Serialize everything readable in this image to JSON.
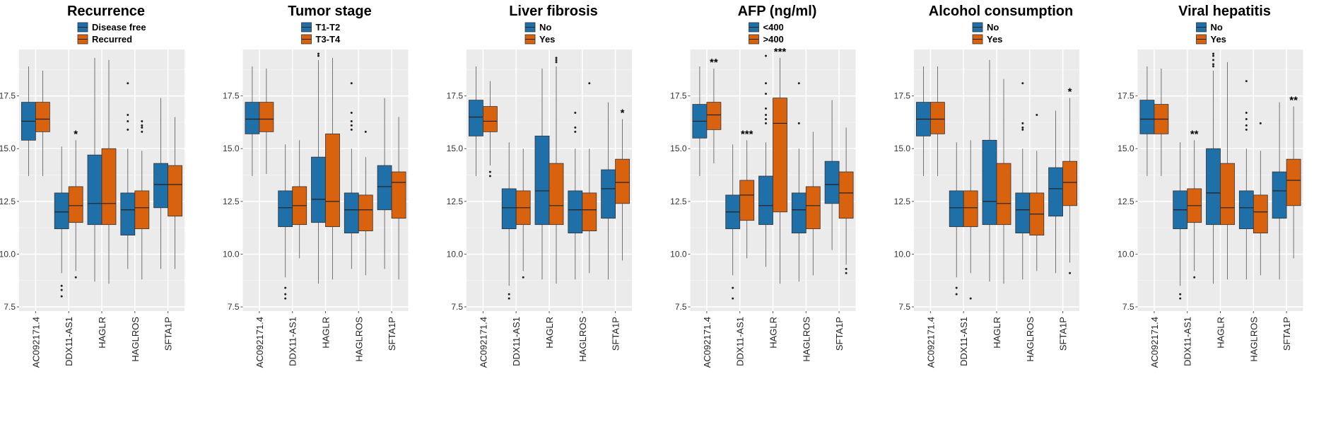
{
  "chart_data": [
    {
      "type": "box",
      "title": "Recurrence",
      "legend": [
        "Disease free",
        "Recurred"
      ],
      "categories": [
        "AC092171.4",
        "DDX11-AS1",
        "HAGLR",
        "HAGLROS",
        "SFTA1P"
      ],
      "ylim": [
        7.3,
        19.7
      ],
      "yticks": [
        "7.5",
        "10.0",
        "12.5",
        "15.0",
        "17.5"
      ],
      "colors": [
        "#1f6fa8",
        "#d9620f"
      ],
      "boxes": [
        [
          {
            "q1": 15.4,
            "med": 16.3,
            "q3": 17.2,
            "lo": 13.7,
            "hi": 18.9,
            "out": []
          },
          {
            "q1": 15.8,
            "med": 16.4,
            "q3": 17.2,
            "lo": 13.7,
            "hi": 18.7,
            "out": []
          }
        ],
        [
          {
            "q1": 11.2,
            "med": 12.0,
            "q3": 12.9,
            "lo": 9.1,
            "hi": 15.1,
            "out": [
              8.5,
              8.3,
              8.0
            ]
          },
          {
            "q1": 11.5,
            "med": 12.3,
            "q3": 13.2,
            "lo": 9.2,
            "hi": 15.4,
            "out": [
              8.9
            ]
          }
        ],
        [
          {
            "q1": 11.4,
            "med": 12.4,
            "q3": 14.7,
            "lo": 8.7,
            "hi": 19.3,
            "out": []
          },
          {
            "q1": 11.4,
            "med": 12.4,
            "q3": 15.0,
            "lo": 8.6,
            "hi": 19.2,
            "out": []
          }
        ],
        [
          {
            "q1": 10.9,
            "med": 12.1,
            "q3": 12.9,
            "lo": 9.3,
            "hi": 15.0,
            "out": [
              15.9,
              16.3,
              16.6,
              18.1
            ]
          },
          {
            "q1": 11.2,
            "med": 12.2,
            "q3": 13.0,
            "lo": 8.8,
            "hi": 14.9,
            "out": [
              15.8,
              16.0,
              16.1,
              16.3
            ]
          }
        ],
        [
          {
            "q1": 12.2,
            "med": 13.3,
            "q3": 14.3,
            "lo": 9.3,
            "hi": 17.4,
            "out": []
          },
          {
            "q1": 11.8,
            "med": 13.3,
            "q3": 14.2,
            "lo": 9.3,
            "hi": 16.5,
            "out": []
          }
        ]
      ],
      "sig": [
        "",
        "*",
        "",
        "",
        ""
      ]
    },
    {
      "type": "box",
      "title": "Tumor stage",
      "legend": [
        "T1-T2",
        "T3-T4"
      ],
      "categories": [
        "AC092171.4",
        "DDX11-AS1",
        "HAGLR",
        "HAGLROS",
        "SFTA1P"
      ],
      "ylim": [
        7.3,
        19.7
      ],
      "yticks": [
        "7.5",
        "10.0",
        "12.5",
        "15.0",
        "17.5"
      ],
      "colors": [
        "#1f6fa8",
        "#d9620f"
      ],
      "boxes": [
        [
          {
            "q1": 15.7,
            "med": 16.4,
            "q3": 17.2,
            "lo": 13.7,
            "hi": 18.9,
            "out": []
          },
          {
            "q1": 15.8,
            "med": 16.4,
            "q3": 17.2,
            "lo": 13.8,
            "hi": 18.8,
            "out": []
          }
        ],
        [
          {
            "q1": 11.3,
            "med": 12.2,
            "q3": 13.0,
            "lo": 8.9,
            "hi": 15.2,
            "out": [
              8.4,
              8.1,
              7.9
            ]
          },
          {
            "q1": 11.4,
            "med": 12.3,
            "q3": 13.2,
            "lo": 9.8,
            "hi": 15.4,
            "out": []
          }
        ],
        [
          {
            "q1": 11.5,
            "med": 12.6,
            "q3": 14.6,
            "lo": 8.6,
            "hi": 19.2,
            "out": [
              19.4,
              19.5
            ]
          },
          {
            "q1": 11.3,
            "med": 12.5,
            "q3": 15.7,
            "lo": 8.8,
            "hi": 19.3,
            "out": []
          }
        ],
        [
          {
            "q1": 11.0,
            "med": 12.1,
            "q3": 12.9,
            "lo": 9.3,
            "hi": 15.0,
            "out": [
              15.9,
              16.1,
              16.3,
              16.7,
              18.1
            ]
          },
          {
            "q1": 11.1,
            "med": 12.1,
            "q3": 12.8,
            "lo": 9.0,
            "hi": 14.6,
            "out": [
              15.8
            ]
          }
        ],
        [
          {
            "q1": 12.1,
            "med": 13.2,
            "q3": 14.2,
            "lo": 9.3,
            "hi": 17.4,
            "out": []
          },
          {
            "q1": 11.7,
            "med": 13.4,
            "q3": 13.9,
            "lo": 8.8,
            "hi": 16.5,
            "out": []
          }
        ]
      ],
      "sig": [
        "",
        "",
        "",
        "",
        ""
      ]
    },
    {
      "type": "box",
      "title": "Liver fibrosis",
      "legend": [
        "No",
        "Yes"
      ],
      "categories": [
        "AC092171.4",
        "DDX11-AS1",
        "HAGLR",
        "HAGLROS",
        "SFTA1P"
      ],
      "ylim": [
        7.3,
        19.7
      ],
      "yticks": [
        "7.5",
        "10.0",
        "12.5",
        "15.0",
        "17.5"
      ],
      "colors": [
        "#1f6fa8",
        "#d9620f"
      ],
      "boxes": [
        [
          {
            "q1": 15.6,
            "med": 16.5,
            "q3": 17.3,
            "lo": 13.7,
            "hi": 18.9,
            "out": []
          },
          {
            "q1": 15.8,
            "med": 16.3,
            "q3": 17.0,
            "lo": 14.2,
            "hi": 18.2,
            "out": [
              13.9,
              13.7
            ]
          }
        ],
        [
          {
            "q1": 11.2,
            "med": 12.2,
            "q3": 13.1,
            "lo": 8.5,
            "hi": 15.3,
            "out": [
              8.1,
              7.9
            ]
          },
          {
            "q1": 11.4,
            "med": 12.2,
            "q3": 13.0,
            "lo": 9.2,
            "hi": 15.0,
            "out": [
              8.9
            ]
          }
        ],
        [
          {
            "q1": 11.4,
            "med": 13.0,
            "q3": 15.6,
            "lo": 8.8,
            "hi": 18.8,
            "out": []
          },
          {
            "q1": 11.4,
            "med": 12.3,
            "q3": 14.3,
            "lo": 8.6,
            "hi": 18.9,
            "out": [
              19.1,
              19.2,
              19.3
            ]
          }
        ],
        [
          {
            "q1": 11.0,
            "med": 12.1,
            "q3": 13.0,
            "lo": 8.8,
            "hi": 15.0,
            "out": [
              15.8,
              16.0,
              16.7
            ]
          },
          {
            "q1": 11.1,
            "med": 12.1,
            "q3": 12.9,
            "lo": 9.1,
            "hi": 15.0,
            "out": [
              18.1
            ]
          }
        ],
        [
          {
            "q1": 11.7,
            "med": 13.1,
            "q3": 14.0,
            "lo": 8.8,
            "hi": 17.2,
            "out": []
          },
          {
            "q1": 12.4,
            "med": 13.4,
            "q3": 14.5,
            "lo": 9.7,
            "hi": 16.4,
            "out": []
          }
        ]
      ],
      "sig": [
        "",
        "",
        "",
        "",
        "*"
      ]
    },
    {
      "type": "box",
      "title": "AFP (ng/ml)",
      "legend": [
        "<400",
        ">400"
      ],
      "categories": [
        "AC092171.4",
        "DDX11-AS1",
        "HAGLR",
        "HAGLROS",
        "SFTA1P"
      ],
      "ylim": [
        7.3,
        19.7
      ],
      "yticks": [
        "7.5",
        "10.0",
        "12.5",
        "15.0",
        "17.5"
      ],
      "colors": [
        "#1f6fa8",
        "#d9620f"
      ],
      "boxes": [
        [
          {
            "q1": 15.5,
            "med": 16.3,
            "q3": 17.1,
            "lo": 13.7,
            "hi": 18.9,
            "out": []
          },
          {
            "q1": 15.9,
            "med": 16.6,
            "q3": 17.2,
            "lo": 14.3,
            "hi": 18.8,
            "out": []
          }
        ],
        [
          {
            "q1": 11.2,
            "med": 12.0,
            "q3": 12.8,
            "lo": 9.0,
            "hi": 15.2,
            "out": [
              8.4,
              7.9
            ]
          },
          {
            "q1": 11.6,
            "med": 12.8,
            "q3": 13.5,
            "lo": 9.8,
            "hi": 15.4,
            "out": []
          }
        ],
        [
          {
            "q1": 11.4,
            "med": 12.3,
            "q3": 13.7,
            "lo": 9.4,
            "hi": 15.3,
            "out": [
              16.2,
              16.4,
              16.6,
              16.9,
              17.6,
              18.1,
              19.4
            ]
          },
          {
            "q1": 12.0,
            "med": 16.2,
            "q3": 17.4,
            "lo": 8.6,
            "hi": 19.3,
            "out": []
          }
        ],
        [
          {
            "q1": 11.0,
            "med": 12.1,
            "q3": 12.9,
            "lo": 8.7,
            "hi": 15.0,
            "out": [
              16.2,
              18.1
            ]
          },
          {
            "q1": 11.2,
            "med": 12.3,
            "q3": 13.2,
            "lo": 9.0,
            "hi": 15.8,
            "out": []
          }
        ],
        [
          {
            "q1": 12.4,
            "med": 13.3,
            "q3": 14.4,
            "lo": 10.2,
            "hi": 17.3,
            "out": []
          },
          {
            "q1": 11.7,
            "med": 12.9,
            "q3": 13.9,
            "lo": 9.5,
            "hi": 16.0,
            "out": [
              9.3,
              9.1
            ]
          }
        ]
      ],
      "sig": [
        "**",
        "***",
        "***",
        "",
        ""
      ]
    },
    {
      "type": "box",
      "title": "Alcohol consumption",
      "legend": [
        "No",
        "Yes"
      ],
      "categories": [
        "AC092171.4",
        "DDX11-AS1",
        "HAGLR",
        "HAGLROS",
        "SFTA1P"
      ],
      "ylim": [
        7.3,
        19.7
      ],
      "yticks": [
        "7.5",
        "10.0",
        "12.5",
        "15.0",
        "17.5"
      ],
      "colors": [
        "#1f6fa8",
        "#d9620f"
      ],
      "boxes": [
        [
          {
            "q1": 15.6,
            "med": 16.4,
            "q3": 17.2,
            "lo": 13.7,
            "hi": 18.9,
            "out": []
          },
          {
            "q1": 15.7,
            "med": 16.4,
            "q3": 17.2,
            "lo": 13.7,
            "hi": 18.9,
            "out": []
          }
        ],
        [
          {
            "q1": 11.3,
            "med": 12.2,
            "q3": 13.0,
            "lo": 8.9,
            "hi": 15.3,
            "out": [
              8.4,
              8.1
            ]
          },
          {
            "q1": 11.3,
            "med": 12.2,
            "q3": 13.0,
            "lo": 9.1,
            "hi": 15.4,
            "out": [
              7.9
            ]
          }
        ],
        [
          {
            "q1": 11.4,
            "med": 12.5,
            "q3": 15.4,
            "lo": 8.7,
            "hi": 19.2,
            "out": []
          },
          {
            "q1": 11.4,
            "med": 12.4,
            "q3": 14.3,
            "lo": 8.6,
            "hi": 18.3,
            "out": []
          }
        ],
        [
          {
            "q1": 11.0,
            "med": 12.1,
            "q3": 12.9,
            "lo": 8.8,
            "hi": 15.0,
            "out": [
              15.9,
              16.0,
              16.2,
              18.1
            ]
          },
          {
            "q1": 10.9,
            "med": 11.9,
            "q3": 12.9,
            "lo": 9.2,
            "hi": 14.9,
            "out": [
              16.6
            ]
          }
        ],
        [
          {
            "q1": 11.8,
            "med": 13.1,
            "q3": 14.1,
            "lo": 9.1,
            "hi": 16.8,
            "out": []
          },
          {
            "q1": 12.3,
            "med": 13.4,
            "q3": 14.4,
            "lo": 9.6,
            "hi": 17.4,
            "out": [
              9.1
            ]
          }
        ]
      ],
      "sig": [
        "",
        "",
        "",
        "",
        "*"
      ]
    },
    {
      "type": "box",
      "title": "Viral hepatitis",
      "legend": [
        "No",
        "Yes"
      ],
      "categories": [
        "AC092171.4",
        "DDX11-AS1",
        "HAGLR",
        "HAGLROS",
        "SFTA1P"
      ],
      "ylim": [
        7.3,
        19.7
      ],
      "yticks": [
        "7.5",
        "10.0",
        "12.5",
        "15.0",
        "17.5"
      ],
      "colors": [
        "#1f6fa8",
        "#d9620f"
      ],
      "boxes": [
        [
          {
            "q1": 15.7,
            "med": 16.4,
            "q3": 17.3,
            "lo": 13.7,
            "hi": 18.9,
            "out": []
          },
          {
            "q1": 15.7,
            "med": 16.4,
            "q3": 17.1,
            "lo": 13.7,
            "hi": 18.8,
            "out": []
          }
        ],
        [
          {
            "q1": 11.2,
            "med": 12.1,
            "q3": 13.0,
            "lo": 8.5,
            "hi": 15.3,
            "out": [
              8.1,
              7.9
            ]
          },
          {
            "q1": 11.5,
            "med": 12.3,
            "q3": 13.1,
            "lo": 9.2,
            "hi": 15.4,
            "out": [
              8.9
            ]
          }
        ],
        [
          {
            "q1": 11.4,
            "med": 12.9,
            "q3": 15.0,
            "lo": 8.6,
            "hi": 18.7,
            "out": [
              18.9,
              19.0,
              19.2,
              19.4,
              19.5
            ]
          },
          {
            "q1": 11.4,
            "med": 12.2,
            "q3": 14.3,
            "lo": 8.8,
            "hi": 19.1,
            "out": []
          }
        ],
        [
          {
            "q1": 11.2,
            "med": 12.2,
            "q3": 13.0,
            "lo": 8.8,
            "hi": 15.0,
            "out": [
              15.9,
              16.1,
              16.4,
              16.7,
              18.2
            ]
          },
          {
            "q1": 11.0,
            "med": 12.0,
            "q3": 12.8,
            "lo": 9.0,
            "hi": 14.9,
            "out": [
              16.2
            ]
          }
        ],
        [
          {
            "q1": 11.7,
            "med": 13.0,
            "q3": 13.9,
            "lo": 8.8,
            "hi": 17.2,
            "out": []
          },
          {
            "q1": 12.3,
            "med": 13.5,
            "q3": 14.5,
            "lo": 9.8,
            "hi": 17.0,
            "out": []
          }
        ]
      ],
      "sig": [
        "",
        "**",
        "",
        "",
        "**"
      ]
    }
  ]
}
